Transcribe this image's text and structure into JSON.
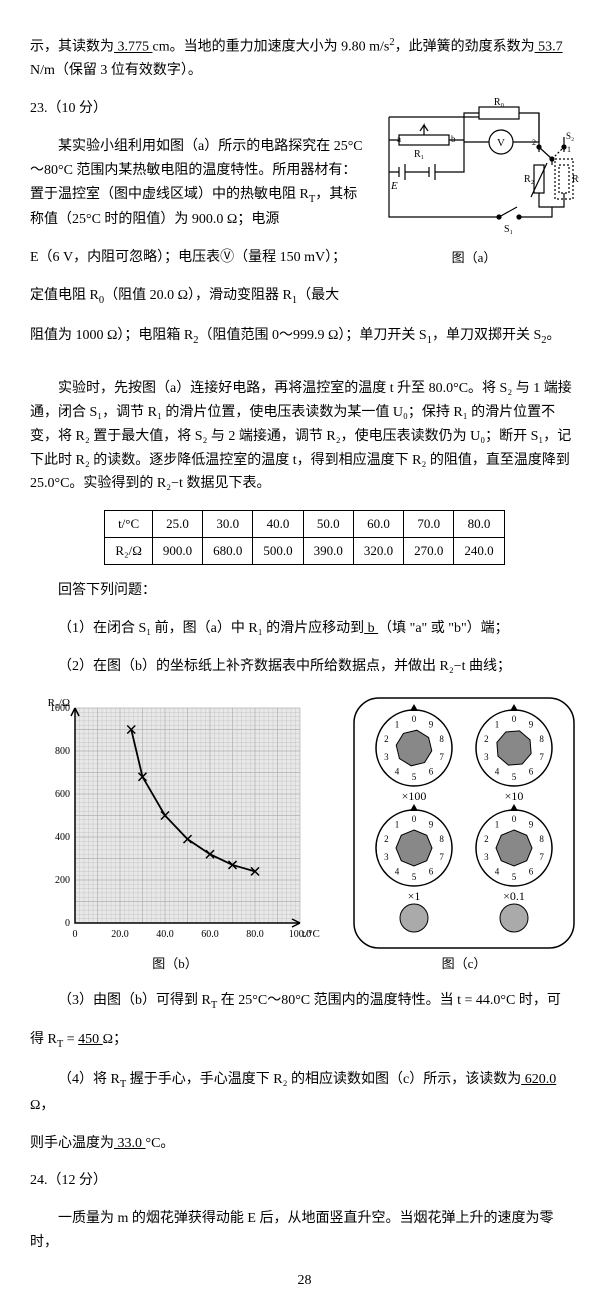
{
  "intro": {
    "line1a": "示，其读数为",
    "reading1": "  3.775 ",
    "line1b": " cm。当地的重力加速度大小为 9.80 m/s",
    "sq": "2",
    "line1c": "，此弹簧的劲度系数为",
    "reading2": "   53.7  ",
    "line2": "N/m（保留 3 位有效数字）。"
  },
  "q23": {
    "head": "23.（10 分）",
    "p1": "某实验小组利用如图（a）所示的电路探究在 25°C～80°C 范围内某热敏电阻的温度特性。所用器材有：置于温控室（图中虚线区域）中的热敏电阻 R",
    "p1b": "，其标称值（25°C 时的阻值）为 900.0 Ω；电源",
    "p2": "E（6 V，内阻可忽略）；电压表Ⓥ（量程 150 mV）；",
    "p3a": "定值电阻 R",
    "p3b": "（阻值 20.0 Ω），滑动变阻器 R",
    "p3c": "（最大",
    "p4a": "阻值为 1000 Ω）；电阻箱 R",
    "p4b": "（阻值范围 0～999.9 Ω）；单刀开关 S",
    "p4c": "，单刀双掷开关 S",
    "p4d": "。",
    "p5": "实验时，先按图（a）连接好电路，再将温控室的温度 t 升至 80.0°C。将 S₂ 与 1 端接通，闭合 S₁，调节 R₁ 的滑片位置，使电压表读数为某一值 U₀；保持 R₁ 的滑片位置不变，将 R₂ 置于最大值，将 S₂ 与 2 端接通，调节 R₂，使电压表读数仍为 U₀；断开 S₁，记下此时 R₂ 的读数。逐步降低温控室的温度 t，得到相应温度下 R₂ 的阻值，直至温度降到 25.0°C。实验得到的 R₂−t 数据见下表。",
    "cap_a": "图（a）"
  },
  "table": {
    "h1": "t/°C",
    "h2": "R₂/Ω",
    "t": [
      "25.0",
      "30.0",
      "40.0",
      "50.0",
      "60.0",
      "70.0",
      "80.0"
    ],
    "r": [
      "900.0",
      "680.0",
      "500.0",
      "390.0",
      "320.0",
      "270.0",
      "240.0"
    ]
  },
  "answers": {
    "pre": "回答下列问题：",
    "q1a": "（1）在闭合 S₁ 前，图（a）中 R₁ 的滑片应移动到",
    "a1": "   b   ",
    "q1b": "（填 \"a\" 或 \"b\"）端；",
    "q2": "（2）在图（b）的坐标纸上补齐数据表中所给数据点，并做出 R₂−t 曲线；",
    "cap_b": "图（b）",
    "cap_c": "图（c）",
    "q3a": "（3）由图（b）可得到 R",
    "q3b": " 在 25°C～80°C 范围内的温度特性。当 t = 44.0°C 时，可",
    "q3c": "得 R",
    "q3d": " = ",
    "a3": "  450  ",
    "q3e": " Ω；",
    "q4a": "（4）将 R",
    "q4b": " 握于手心，手心温度下 R₂ 的相应读数如图（c）所示，该读数为",
    "a4a": " 620.0 ",
    "q4c": " Ω，",
    "q4d": "则手心温度为",
    "a4b": " 33.0 ",
    "q4e": " °C。"
  },
  "q24": {
    "head": "24.（12 分）",
    "p1": "一质量为 m 的烟花弹获得动能 E 后，从地面竖直升空。当烟花弹上升的速度为零时，"
  },
  "page": "28",
  "chart": {
    "ylabel": "R₂/Ω",
    "xlabel": "t/°C",
    "xticks": [
      "0",
      "20.0",
      "40.0",
      "60.0",
      "80.0",
      "100.0"
    ],
    "yticks": [
      "0",
      "200",
      "400",
      "600",
      "800",
      "1000"
    ],
    "xlim": [
      0,
      100
    ],
    "ylim": [
      0,
      1000
    ],
    "points": [
      [
        25,
        900
      ],
      [
        30,
        680
      ],
      [
        40,
        500
      ],
      [
        50,
        390
      ],
      [
        60,
        320
      ],
      [
        70,
        270
      ],
      [
        80,
        240
      ]
    ],
    "grid_color": "#b0b0b0",
    "bg_color": "#e8e8e8",
    "marker": "x",
    "marker_color": "#000",
    "line_color": "#000"
  },
  "dials": {
    "labels": [
      "×100",
      "×10",
      "×1",
      "×0.1"
    ],
    "readings": [
      6,
      2,
      0,
      0
    ],
    "digit_color": "#000",
    "knob_color": "#888"
  }
}
